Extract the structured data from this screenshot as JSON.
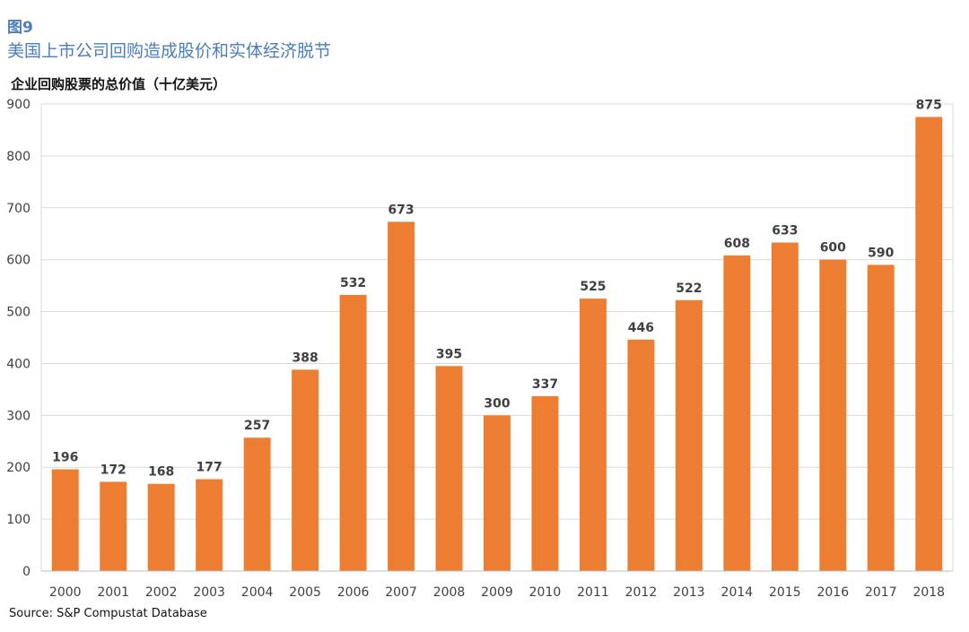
{
  "figure": {
    "label": "图9",
    "title": "美国上市公司回购造成股价和实体经济脱节",
    "source": "Source: S&P Compustat Database"
  },
  "chart_data": {
    "type": "bar",
    "title": "企业回购股票的总价值（十亿美元）",
    "xlabel": "",
    "ylabel": "",
    "categories": [
      "2000",
      "2001",
      "2002",
      "2003",
      "2004",
      "2005",
      "2006",
      "2007",
      "2008",
      "2009",
      "2010",
      "2011",
      "2012",
      "2013",
      "2014",
      "2015",
      "2016",
      "2017",
      "2018"
    ],
    "values": [
      196,
      172,
      168,
      177,
      257,
      388,
      532,
      673,
      395,
      300,
      337,
      525,
      446,
      522,
      608,
      633,
      600,
      590,
      875
    ],
    "ylim": [
      0,
      900
    ],
    "yticks": [
      0,
      100,
      200,
      300,
      400,
      500,
      600,
      700,
      800,
      900
    ],
    "grid": true,
    "legend": "none",
    "bar_color": "#ed7d31",
    "grid_color": "#d9d9d9",
    "label_color": "#404040"
  }
}
